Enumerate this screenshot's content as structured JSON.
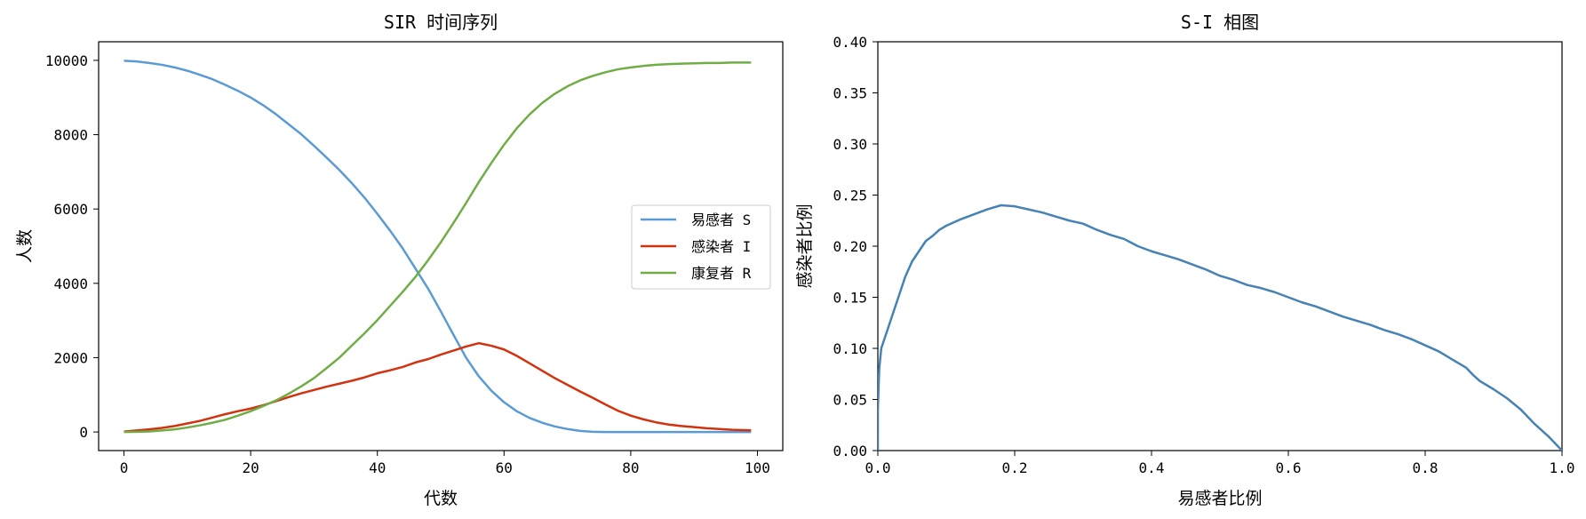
{
  "chart_data": [
    {
      "type": "line",
      "title": "SIR 时间序列",
      "xlabel": "代数",
      "ylabel": "人数",
      "xlim": [
        -4,
        104
      ],
      "ylim": [
        -500,
        10500
      ],
      "xticks": [
        0,
        20,
        40,
        60,
        80,
        100
      ],
      "yticks": [
        0,
        2000,
        4000,
        6000,
        8000,
        10000
      ],
      "legend": "center-right",
      "series": [
        {
          "name": "易感者 S",
          "color": "#5b9bd5",
          "x": [
            0,
            2,
            4,
            6,
            8,
            10,
            12,
            14,
            16,
            18,
            20,
            22,
            24,
            26,
            28,
            30,
            32,
            34,
            36,
            38,
            40,
            42,
            44,
            46,
            48,
            50,
            52,
            54,
            56,
            58,
            60,
            62,
            64,
            66,
            68,
            70,
            72,
            74,
            76,
            78,
            80,
            82,
            84,
            86,
            88,
            90,
            92,
            94,
            96,
            98,
            99
          ],
          "y": [
            9990,
            9970,
            9930,
            9880,
            9810,
            9720,
            9610,
            9490,
            9340,
            9180,
            9000,
            8790,
            8550,
            8280,
            8010,
            7700,
            7380,
            7050,
            6690,
            6300,
            5870,
            5420,
            4940,
            4400,
            3860,
            3250,
            2620,
            2000,
            1500,
            1110,
            800,
            560,
            380,
            250,
            150,
            80,
            30,
            5,
            0,
            0,
            0,
            0,
            0,
            0,
            0,
            0,
            0,
            0,
            0,
            0,
            0
          ]
        },
        {
          "name": "感染者 I",
          "color": "#d2330f",
          "x": [
            0,
            2,
            4,
            6,
            8,
            10,
            12,
            14,
            16,
            18,
            20,
            22,
            24,
            26,
            28,
            30,
            32,
            34,
            36,
            38,
            40,
            42,
            44,
            46,
            48,
            50,
            52,
            54,
            56,
            58,
            60,
            62,
            64,
            66,
            68,
            70,
            72,
            74,
            76,
            78,
            80,
            82,
            84,
            86,
            88,
            90,
            92,
            94,
            96,
            98,
            99
          ],
          "y": [
            10,
            40,
            70,
            110,
            160,
            230,
            300,
            390,
            480,
            560,
            630,
            720,
            830,
            940,
            1040,
            1130,
            1220,
            1300,
            1380,
            1470,
            1580,
            1660,
            1750,
            1870,
            1960,
            2080,
            2190,
            2300,
            2390,
            2320,
            2220,
            2050,
            1850,
            1650,
            1450,
            1270,
            1090,
            920,
            740,
            570,
            440,
            340,
            260,
            200,
            160,
            130,
            100,
            80,
            60,
            50,
            45
          ]
        },
        {
          "name": "康复者 R",
          "color": "#70ad47",
          "x": [
            0,
            2,
            4,
            6,
            8,
            10,
            12,
            14,
            16,
            18,
            20,
            22,
            24,
            26,
            28,
            30,
            32,
            34,
            36,
            38,
            40,
            42,
            44,
            46,
            48,
            50,
            52,
            54,
            56,
            58,
            60,
            62,
            64,
            66,
            68,
            70,
            72,
            74,
            76,
            78,
            80,
            82,
            84,
            86,
            88,
            90,
            92,
            94,
            96,
            98,
            99
          ],
          "y": [
            0,
            5,
            15,
            40,
            70,
            120,
            180,
            250,
            330,
            440,
            560,
            700,
            850,
            1030,
            1230,
            1450,
            1720,
            2000,
            2330,
            2660,
            3010,
            3390,
            3770,
            4170,
            4620,
            5100,
            5620,
            6160,
            6720,
            7240,
            7730,
            8170,
            8540,
            8850,
            9100,
            9300,
            9460,
            9580,
            9680,
            9760,
            9810,
            9850,
            9880,
            9900,
            9910,
            9920,
            9930,
            9930,
            9940,
            9940,
            9940
          ]
        }
      ]
    },
    {
      "type": "line",
      "title": "S-I 相图",
      "xlabel": "易感者比例",
      "ylabel": "感染者比例",
      "xlim": [
        0.0,
        1.0
      ],
      "ylim": [
        0.0,
        0.4
      ],
      "xticks": [
        "0.0",
        "0.2",
        "0.4",
        "0.6",
        "0.8",
        "1.0"
      ],
      "yticks": [
        "0.00",
        "0.05",
        "0.10",
        "0.15",
        "0.20",
        "0.25",
        "0.30",
        "0.35",
        "0.40"
      ],
      "series": [
        {
          "color": "#4682b4",
          "x": [
            0.0,
            0.0,
            0.002,
            0.005,
            0.01,
            0.02,
            0.03,
            0.04,
            0.05,
            0.06,
            0.07,
            0.08,
            0.09,
            0.1,
            0.12,
            0.14,
            0.16,
            0.18,
            0.2,
            0.22,
            0.24,
            0.26,
            0.28,
            0.3,
            0.32,
            0.34,
            0.36,
            0.38,
            0.4,
            0.42,
            0.44,
            0.46,
            0.48,
            0.5,
            0.52,
            0.54,
            0.56,
            0.58,
            0.6,
            0.62,
            0.64,
            0.66,
            0.68,
            0.7,
            0.72,
            0.74,
            0.76,
            0.78,
            0.8,
            0.82,
            0.84,
            0.86,
            0.87,
            0.88,
            0.9,
            0.92,
            0.94,
            0.96,
            0.98,
            1.0
          ],
          "y": [
            0.0,
            0.04,
            0.08,
            0.1,
            0.11,
            0.13,
            0.15,
            0.17,
            0.185,
            0.195,
            0.205,
            0.21,
            0.216,
            0.22,
            0.226,
            0.231,
            0.236,
            0.24,
            0.239,
            0.236,
            0.233,
            0.229,
            0.225,
            0.222,
            0.216,
            0.211,
            0.207,
            0.2,
            0.195,
            0.191,
            0.187,
            0.182,
            0.177,
            0.171,
            0.167,
            0.162,
            0.159,
            0.155,
            0.15,
            0.145,
            0.141,
            0.136,
            0.131,
            0.127,
            0.123,
            0.118,
            0.114,
            0.109,
            0.103,
            0.097,
            0.089,
            0.081,
            0.074,
            0.068,
            0.06,
            0.051,
            0.04,
            0.026,
            0.014,
            0.0
          ]
        }
      ]
    }
  ]
}
